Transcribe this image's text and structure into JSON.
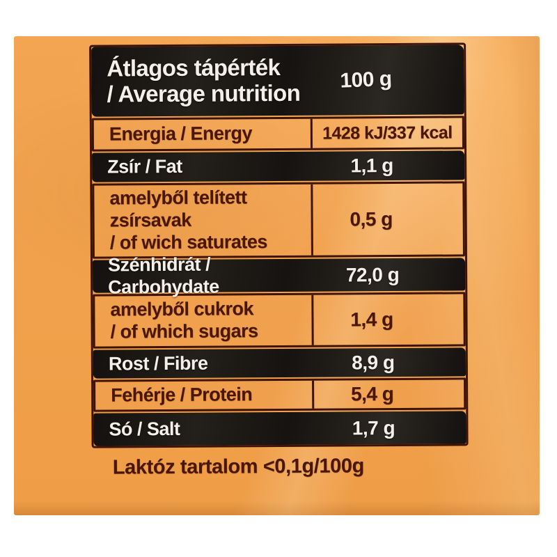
{
  "colors": {
    "bag-orange": "#f2a24e",
    "panel-black": "#1b1814",
    "ink": "#4a1606",
    "line": "#3f1305",
    "paper": "#f4f0e9"
  },
  "table": {
    "header": {
      "title_hu": "Átlagos tápérték",
      "title_en": "/ Average nutrition",
      "amount": "100 g"
    },
    "rows": [
      {
        "id": "energy",
        "label": "Energia / Energy",
        "value": "1428 kJ/337 kcal",
        "style": "light",
        "value_wide": true
      },
      {
        "id": "fat",
        "label": "Zsír / Fat",
        "value": "1,1 g",
        "style": "dark"
      },
      {
        "id": "saturates",
        "label": "amelyből telített\nzsírsavak\n/ of wich saturates",
        "value": "0,5 g",
        "style": "light"
      },
      {
        "id": "carbohydrate",
        "label": "Szénhidrát / Carbohydate",
        "value": "72,0 g",
        "style": "dark"
      },
      {
        "id": "sugars",
        "label": "amelyből cukrok\n/ of which sugars",
        "value": "1,4 g",
        "style": "light"
      },
      {
        "id": "fibre",
        "label": "Rost / Fibre",
        "value": "8,9 g",
        "style": "dark"
      },
      {
        "id": "protein",
        "label": "Fehérje / Protein",
        "value": "5,4 g",
        "style": "light"
      },
      {
        "id": "salt",
        "label": "Só / Salt",
        "value": "1,7 g",
        "style": "dark"
      }
    ],
    "footnote": "Laktóz tartalom <0,1g/100g"
  }
}
